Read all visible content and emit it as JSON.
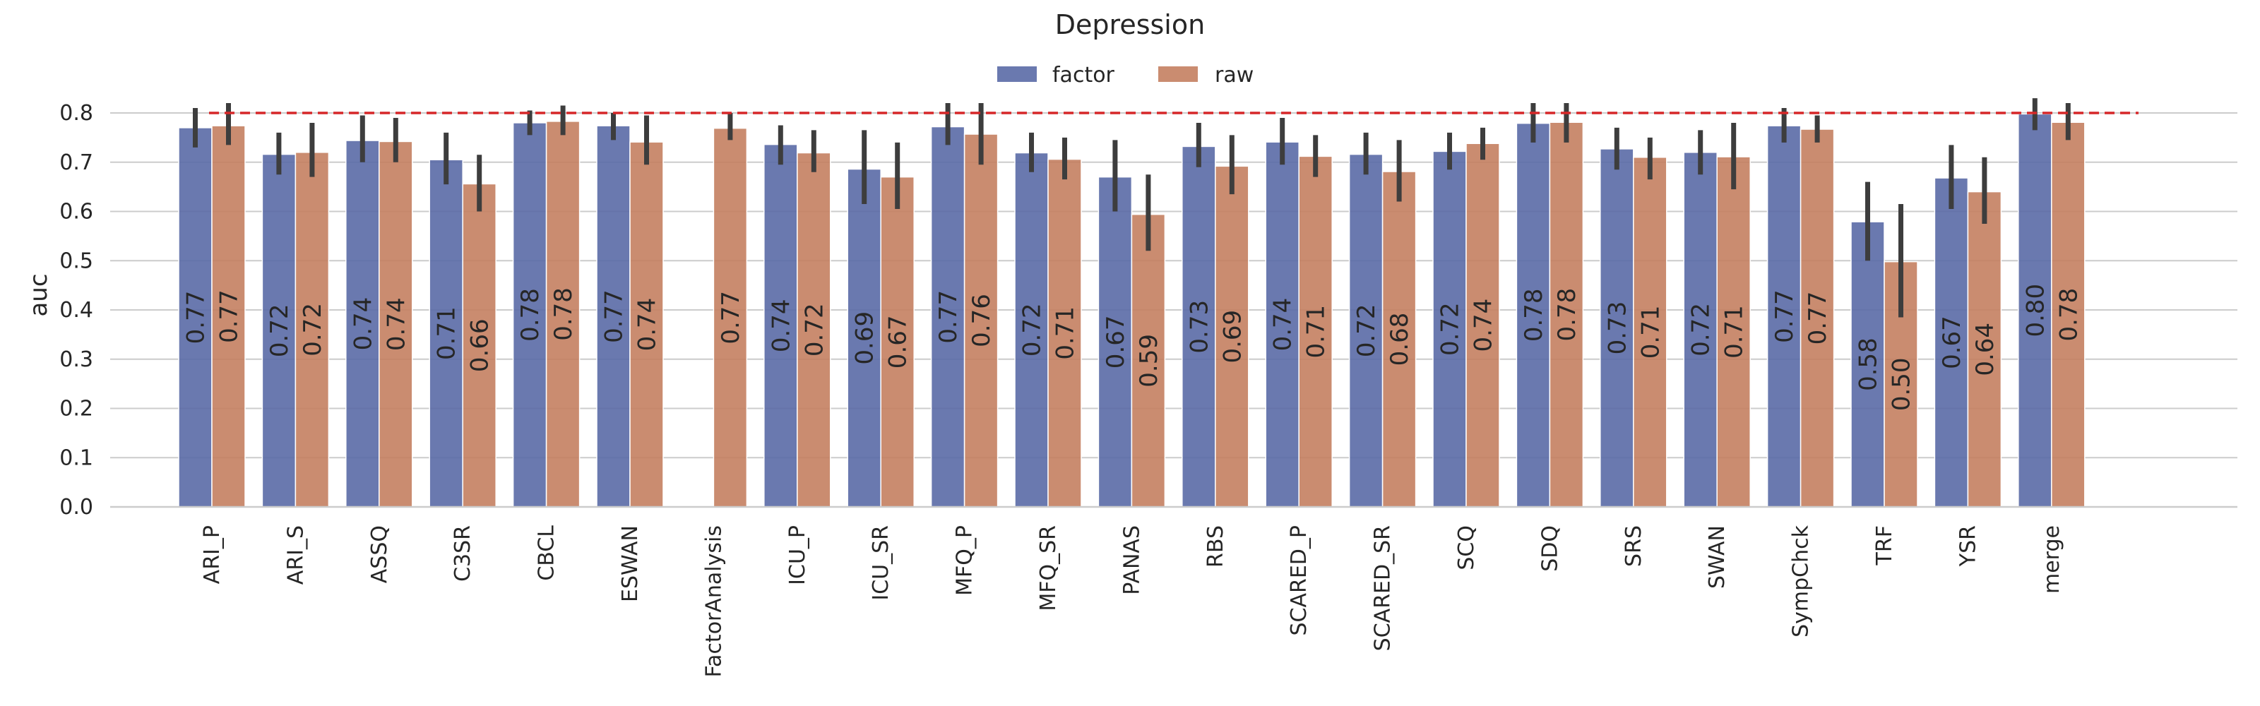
{
  "chart_data": {
    "type": "bar",
    "title": "Depression",
    "xlabel": "",
    "ylabel": "auc",
    "ylim": [
      0,
      0.85
    ],
    "yticks": [
      "0.0",
      "0.1",
      "0.2",
      "0.3",
      "0.4",
      "0.5",
      "0.6",
      "0.7",
      "0.8"
    ],
    "grid": "horizontal",
    "legend": "top-center",
    "reference_line": 0.8,
    "reference_color": "#d62728",
    "categories": [
      "ARI_P",
      "ARI_S",
      "ASSQ",
      "C3SR",
      "CBCL",
      "ESWAN",
      "FactorAnalysis",
      "ICU_P",
      "ICU_SR",
      "MFQ_P",
      "MFQ_SR",
      "PANAS",
      "RBS",
      "SCARED_P",
      "SCARED_SR",
      "SCQ",
      "SDQ",
      "SRS",
      "SWAN",
      "SympChck",
      "TRF",
      "YSR",
      "merge"
    ],
    "series": [
      {
        "name": "factor",
        "color": "#5a6aa6",
        "values": [
          0.77,
          0.716,
          0.744,
          0.705,
          0.78,
          0.774,
          null,
          0.736,
          0.686,
          0.772,
          0.719,
          0.67,
          0.732,
          0.741,
          0.716,
          0.722,
          0.779,
          0.727,
          0.72,
          0.774,
          0.579,
          0.668,
          0.798
        ],
        "labels": [
          "0.77",
          "0.72",
          "0.74",
          "0.71",
          "0.78",
          "0.77",
          "",
          "0.74",
          "0.69",
          "0.77",
          "0.72",
          "0.67",
          "0.73",
          "0.74",
          "0.72",
          "0.72",
          "0.78",
          "0.73",
          "0.72",
          "0.77",
          "0.58",
          "0.67",
          "0.80"
        ],
        "ci_low": [
          0.73,
          0.675,
          0.7,
          0.655,
          0.755,
          0.745,
          null,
          0.695,
          0.615,
          0.735,
          0.68,
          0.6,
          0.69,
          0.695,
          0.675,
          0.685,
          0.74,
          0.685,
          0.675,
          0.74,
          0.5,
          0.605,
          0.765
        ],
        "ci_high": [
          0.81,
          0.76,
          0.795,
          0.76,
          0.805,
          0.8,
          null,
          0.775,
          0.765,
          0.82,
          0.76,
          0.745,
          0.78,
          0.79,
          0.76,
          0.76,
          0.82,
          0.77,
          0.765,
          0.81,
          0.66,
          0.735,
          0.83
        ]
      },
      {
        "name": "raw",
        "color": "#c47f60",
        "values": [
          0.774,
          0.72,
          0.742,
          0.656,
          0.783,
          0.741,
          0.769,
          0.719,
          0.67,
          0.757,
          0.706,
          0.594,
          0.692,
          0.712,
          0.681,
          0.738,
          0.781,
          0.71,
          0.711,
          0.767,
          0.498,
          0.64,
          0.781
        ],
        "labels": [
          "0.77",
          "0.72",
          "0.74",
          "0.66",
          "0.78",
          "0.74",
          "0.77",
          "0.72",
          "0.67",
          "0.76",
          "0.71",
          "0.59",
          "0.69",
          "0.71",
          "0.68",
          "0.74",
          "0.78",
          "0.71",
          "0.71",
          "0.77",
          "0.50",
          "0.64",
          "0.78"
        ],
        "ci_low": [
          0.735,
          0.67,
          0.7,
          0.6,
          0.755,
          0.695,
          0.745,
          0.68,
          0.605,
          0.695,
          0.665,
          0.52,
          0.635,
          0.67,
          0.62,
          0.705,
          0.74,
          0.665,
          0.645,
          0.74,
          0.385,
          0.575,
          0.745
        ],
        "ci_high": [
          0.82,
          0.78,
          0.79,
          0.715,
          0.815,
          0.795,
          0.8,
          0.765,
          0.74,
          0.82,
          0.75,
          0.675,
          0.755,
          0.755,
          0.745,
          0.77,
          0.82,
          0.75,
          0.78,
          0.795,
          0.615,
          0.71,
          0.82
        ]
      }
    ]
  }
}
